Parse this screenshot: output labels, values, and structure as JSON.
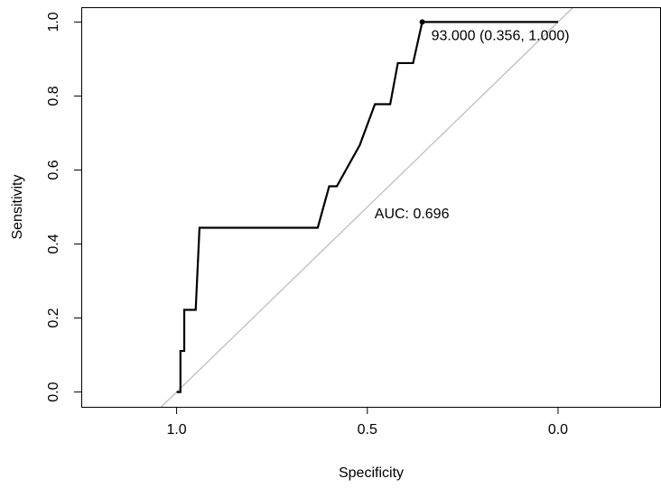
{
  "chart_data": {
    "type": "line",
    "title": "",
    "xlabel": "Specificity",
    "ylabel": "Sensitivity",
    "x_reversed": true,
    "xlim": [
      1.25,
      -0.27
    ],
    "ylim": [
      -0.04,
      1.04
    ],
    "x_ticks": [
      1.0,
      0.5,
      0.0
    ],
    "x_tick_labels": [
      "1.0",
      "0.5",
      "0.0"
    ],
    "y_ticks": [
      0.0,
      0.2,
      0.4,
      0.6,
      0.8,
      1.0
    ],
    "y_tick_labels": [
      "0.0",
      "0.2",
      "0.4",
      "0.6",
      "0.8",
      "1.0"
    ],
    "grid": false,
    "series": [
      {
        "name": "",
        "color": "#000000",
        "points": [
          [
            1.0,
            0.0
          ],
          [
            0.99,
            0.0
          ],
          [
            0.99,
            0.111
          ],
          [
            0.98,
            0.111
          ],
          [
            0.98,
            0.222
          ],
          [
            0.95,
            0.222
          ],
          [
            0.94,
            0.444
          ],
          [
            0.63,
            0.444
          ],
          [
            0.6,
            0.556
          ],
          [
            0.58,
            0.556
          ],
          [
            0.52,
            0.667
          ],
          [
            0.48,
            0.778
          ],
          [
            0.44,
            0.778
          ],
          [
            0.42,
            0.889
          ],
          [
            0.38,
            0.889
          ],
          [
            0.356,
            1.0
          ],
          [
            0.0,
            1.0
          ]
        ]
      }
    ],
    "reference_line": {
      "from": [
        1.0,
        0.0
      ],
      "to": [
        0.0,
        1.0
      ],
      "color": "#bebebe"
    },
    "best_point": {
      "x": 0.356,
      "y": 1.0,
      "label": "93.000 (0.356, 1.000)"
    },
    "auc_label": "AUC: 0.696",
    "auc_label_pos": [
      0.5,
      0.47
    ]
  }
}
